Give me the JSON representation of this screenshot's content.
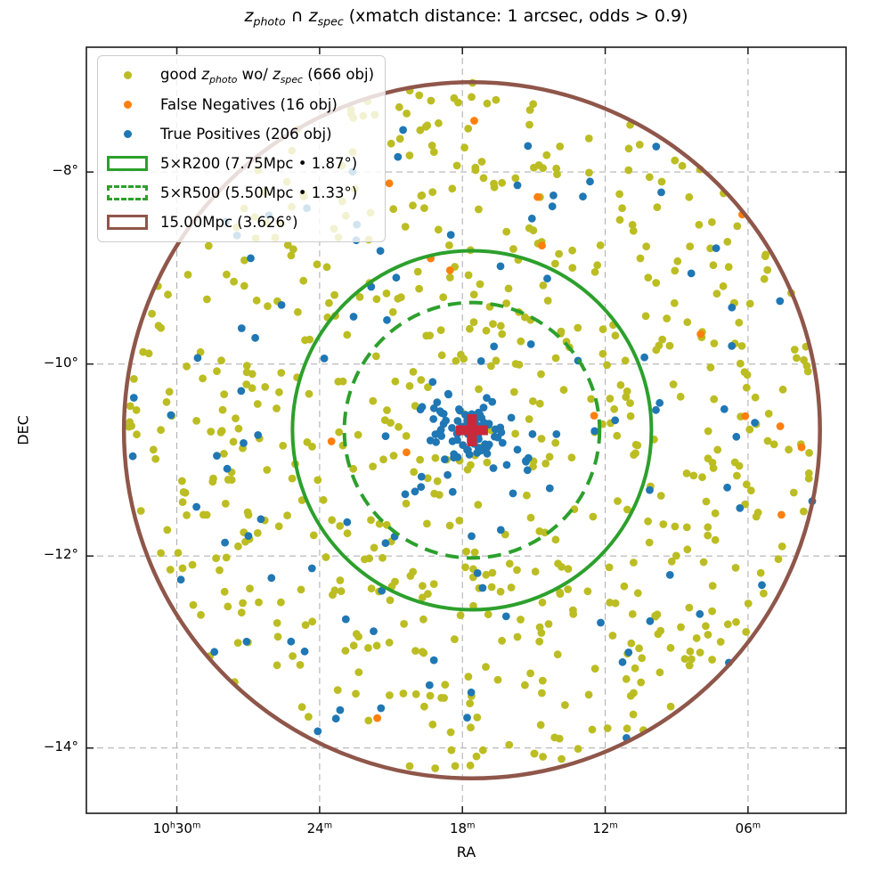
{
  "title_segments": [
    {
      "t": "z",
      "i": true
    },
    {
      "t": "photo",
      "i": true,
      "sub": true
    },
    {
      "t": " ∩ "
    },
    {
      "t": "z",
      "i": true
    },
    {
      "t": "spec",
      "i": true,
      "sub": true
    },
    {
      "t": " (xmatch distance: 1 arcsec, odds > 0.9)"
    }
  ],
  "legend": {
    "position": "upper-left",
    "items": [
      {
        "name": "good-zphoto",
        "marker": "dot",
        "color": "#bcbd22",
        "segments": [
          {
            "t": "good "
          },
          {
            "t": "z",
            "i": true
          },
          {
            "t": "photo",
            "i": true,
            "sub": true
          },
          {
            "t": " wo/ "
          },
          {
            "t": "z",
            "i": true
          },
          {
            "t": "spec",
            "i": true,
            "sub": true
          },
          {
            "t": " (666 obj)"
          }
        ]
      },
      {
        "name": "false-negatives",
        "marker": "dot",
        "color": "#ff7f0e",
        "segments": [
          {
            "t": "False Negatives (16 obj)"
          }
        ]
      },
      {
        "name": "true-positives",
        "marker": "dot",
        "color": "#1f77b4",
        "segments": [
          {
            "t": "True Positives (206 obj)"
          }
        ]
      },
      {
        "name": "r200-swatch",
        "marker": "rect",
        "color": "#2ca02c",
        "segments": [
          {
            "t": "5×R200 (7.75Mpc • 1.87°)"
          }
        ]
      },
      {
        "name": "r500-swatch",
        "marker": "rect-dashed",
        "color": "#2ca02c",
        "segments": [
          {
            "t": "5×R500 (5.50Mpc • 1.33°)"
          }
        ]
      },
      {
        "name": "15mpc-swatch",
        "marker": "rect",
        "color": "#8f564a",
        "segments": [
          {
            "t": "15.00Mpc (3.626°)"
          }
        ]
      }
    ]
  },
  "chart_data": {
    "type": "scatter",
    "title": "z_photo ∩ z_spec (xmatch distance: 1 arcsec, odds > 0.9)",
    "xlabel": "RA",
    "ylabel": "DEC",
    "grid": true,
    "legend_position": "upper left",
    "xlim_ra_deg": [
      158.45,
      150.47
    ],
    "ylim_dec_deg": [
      -14.68,
      -6.7
    ],
    "x_ticks": [
      {
        "ra_deg": 157.5,
        "label": "10h30m",
        "segments": [
          {
            "t": "10"
          },
          {
            "t": "h",
            "sup": true
          },
          {
            "t": "30"
          },
          {
            "t": "m",
            "sup": true
          }
        ]
      },
      {
        "ra_deg": 156.0,
        "label": "24m",
        "segments": [
          {
            "t": "24"
          },
          {
            "t": "m",
            "sup": true
          }
        ]
      },
      {
        "ra_deg": 154.5,
        "label": "18m",
        "segments": [
          {
            "t": "18"
          },
          {
            "t": "m",
            "sup": true
          }
        ]
      },
      {
        "ra_deg": 153.0,
        "label": "12m",
        "segments": [
          {
            "t": "12"
          },
          {
            "t": "m",
            "sup": true
          }
        ]
      },
      {
        "ra_deg": 151.5,
        "label": "06m",
        "segments": [
          {
            "t": "06"
          },
          {
            "t": "m",
            "sup": true
          }
        ]
      }
    ],
    "y_ticks": [
      {
        "dec_deg": -8,
        "label": "−8°"
      },
      {
        "dec_deg": -10,
        "label": "−10°"
      },
      {
        "dec_deg": -12,
        "label": "−12°"
      },
      {
        "dec_deg": -14,
        "label": "−14°"
      }
    ],
    "center": {
      "ra_deg": 154.4,
      "dec_deg": -10.69,
      "marker": "plus",
      "color": "#c9293b"
    },
    "field_radius_deg": 3.626,
    "circles": [
      {
        "name": "circle-5xr200",
        "label": "5×R200",
        "radius_mpc": 7.75,
        "radius_deg": 1.87,
        "line": "solid",
        "color": "#2ca02c",
        "width": 4
      },
      {
        "name": "circle-5xr500",
        "label": "5×R500",
        "radius_mpc": 5.5,
        "radius_deg": 1.33,
        "line": "dashed",
        "color": "#2ca02c",
        "width": 4
      },
      {
        "name": "circle-15mpc",
        "label": "15.00Mpc",
        "radius_mpc": 15.0,
        "radius_deg": 3.626,
        "line": "solid",
        "color": "#8f564a",
        "width": 4.5
      }
    ],
    "series": [
      {
        "name": "good z_photo wo/ z_spec",
        "slug": "good-zphoto",
        "count": 666,
        "color": "#bcbd22",
        "gen": {
          "components": [
            {
              "frac": 1.0,
              "kind": "uniform"
            }
          ]
        }
      },
      {
        "name": "False Negatives",
        "slug": "false-negatives",
        "count": 16,
        "color": "#ff7f0e",
        "gen": {
          "components": [
            {
              "frac": 1.0,
              "kind": "uniform"
            }
          ]
        }
      },
      {
        "name": "True Positives",
        "slug": "true-positives",
        "count": 206,
        "color": "#1f77b4",
        "gen": {
          "components": [
            {
              "frac": 0.42,
              "kind": "gauss",
              "sigma_deg": 0.17
            },
            {
              "frac": 0.13,
              "kind": "gauss",
              "sigma_deg": 0.6
            },
            {
              "frac": 0.45,
              "kind": "uniform"
            }
          ]
        }
      }
    ],
    "seed": 20240917,
    "marker_radius_px": 4.4,
    "grid_color": "#b3b3b3",
    "spine_color": "#1a1a1a"
  }
}
